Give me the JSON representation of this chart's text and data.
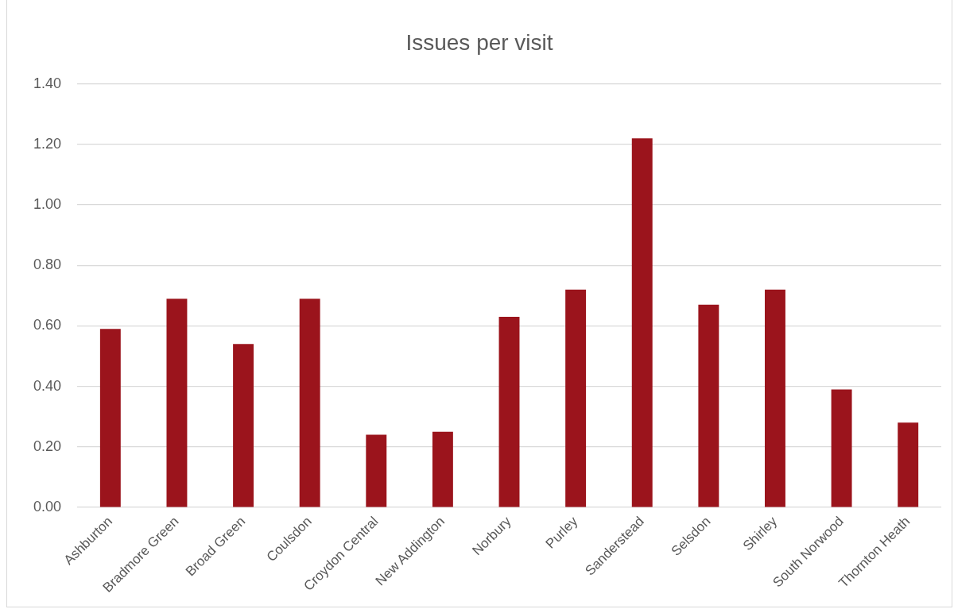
{
  "chart_data": {
    "type": "bar",
    "title": "Issues per visit",
    "categories": [
      "Ashburton",
      "Bradmore Green",
      "Broad Green",
      "Coulsdon",
      "Croydon Central",
      "New Addington",
      "Norbury",
      "Purley",
      "Sanderstead",
      "Selsdon",
      "Shirley",
      "South Norwood",
      "Thornton Heath"
    ],
    "values": [
      0.59,
      0.69,
      0.54,
      0.69,
      0.24,
      0.25,
      0.63,
      0.72,
      1.22,
      0.67,
      0.72,
      0.39,
      0.28
    ],
    "color": "#9b141c",
    "ylim": [
      0,
      1.4
    ],
    "yticks": [
      {
        "value": 0,
        "label": "0.00"
      },
      {
        "value": 0.2,
        "label": "0.20"
      },
      {
        "value": 0.4,
        "label": "0.40"
      },
      {
        "value": 0.6,
        "label": "0.60"
      },
      {
        "value": 0.8,
        "label": "0.80"
      },
      {
        "value": 1,
        "label": "1.00"
      },
      {
        "value": 1.2,
        "label": "1.20"
      },
      {
        "value": 1.4,
        "label": "1.40"
      }
    ],
    "grid": "y"
  }
}
